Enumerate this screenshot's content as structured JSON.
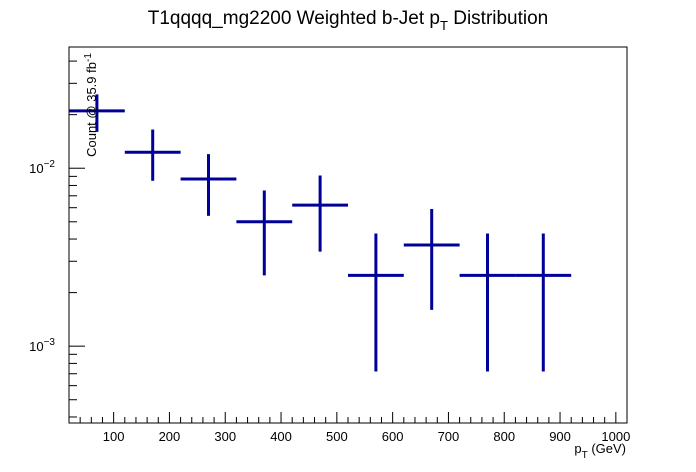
{
  "chart_data": {
    "type": "scatter",
    "title": "T1qqqq_mg2200 Weighted b-Jet p",
    "title_sub": "T",
    "title_tail": " Distribution",
    "xlabel": "p",
    "xlabel_sub": "T",
    "xlabel_tail": " (GeV)",
    "ylabel": "Count @ 35.9 fb",
    "ylabel_sup": "-1",
    "xlim": [
      20,
      1020
    ],
    "ylim": [
      0.00037,
      0.048
    ],
    "yscale": "log",
    "x_ticks": [
      100,
      200,
      300,
      400,
      500,
      600,
      700,
      800,
      900,
      1000
    ],
    "x_tick_labels": [
      "100",
      "200",
      "300",
      "400",
      "500",
      "600",
      "700",
      "800",
      "900",
      "1000"
    ],
    "y_tick_labels": [
      {
        "value": 0.01,
        "base": "10",
        "exp": "−2"
      },
      {
        "value": 0.001,
        "base": "10",
        "exp": "−3"
      }
    ],
    "series": [
      {
        "color": "#000099",
        "points": [
          {
            "x": 70,
            "xlow": 20,
            "xhigh": 120,
            "y": 0.021,
            "ylow": 0.016,
            "yhigh": 0.026
          },
          {
            "x": 170,
            "xlow": 120,
            "xhigh": 220,
            "y": 0.0123,
            "ylow": 0.0085,
            "yhigh": 0.0165
          },
          {
            "x": 270,
            "xlow": 220,
            "xhigh": 320,
            "y": 0.0087,
            "ylow": 0.0054,
            "yhigh": 0.012
          },
          {
            "x": 370,
            "xlow": 320,
            "xhigh": 420,
            "y": 0.005,
            "ylow": 0.0025,
            "yhigh": 0.0075
          },
          {
            "x": 470,
            "xlow": 420,
            "xhigh": 520,
            "y": 0.0062,
            "ylow": 0.0034,
            "yhigh": 0.0091
          },
          {
            "x": 570,
            "xlow": 520,
            "xhigh": 620,
            "y": 0.0025,
            "ylow": 0.00072,
            "yhigh": 0.0043
          },
          {
            "x": 670,
            "xlow": 620,
            "xhigh": 720,
            "y": 0.0037,
            "ylow": 0.0016,
            "yhigh": 0.0059
          },
          {
            "x": 770,
            "xlow": 720,
            "xhigh": 820,
            "y": 0.0025,
            "ylow": 0.00072,
            "yhigh": 0.0043
          },
          {
            "x": 870,
            "xlow": 820,
            "xhigh": 920,
            "y": 0.0025,
            "ylow": 0.00072,
            "yhigh": 0.0043
          }
        ]
      }
    ]
  }
}
